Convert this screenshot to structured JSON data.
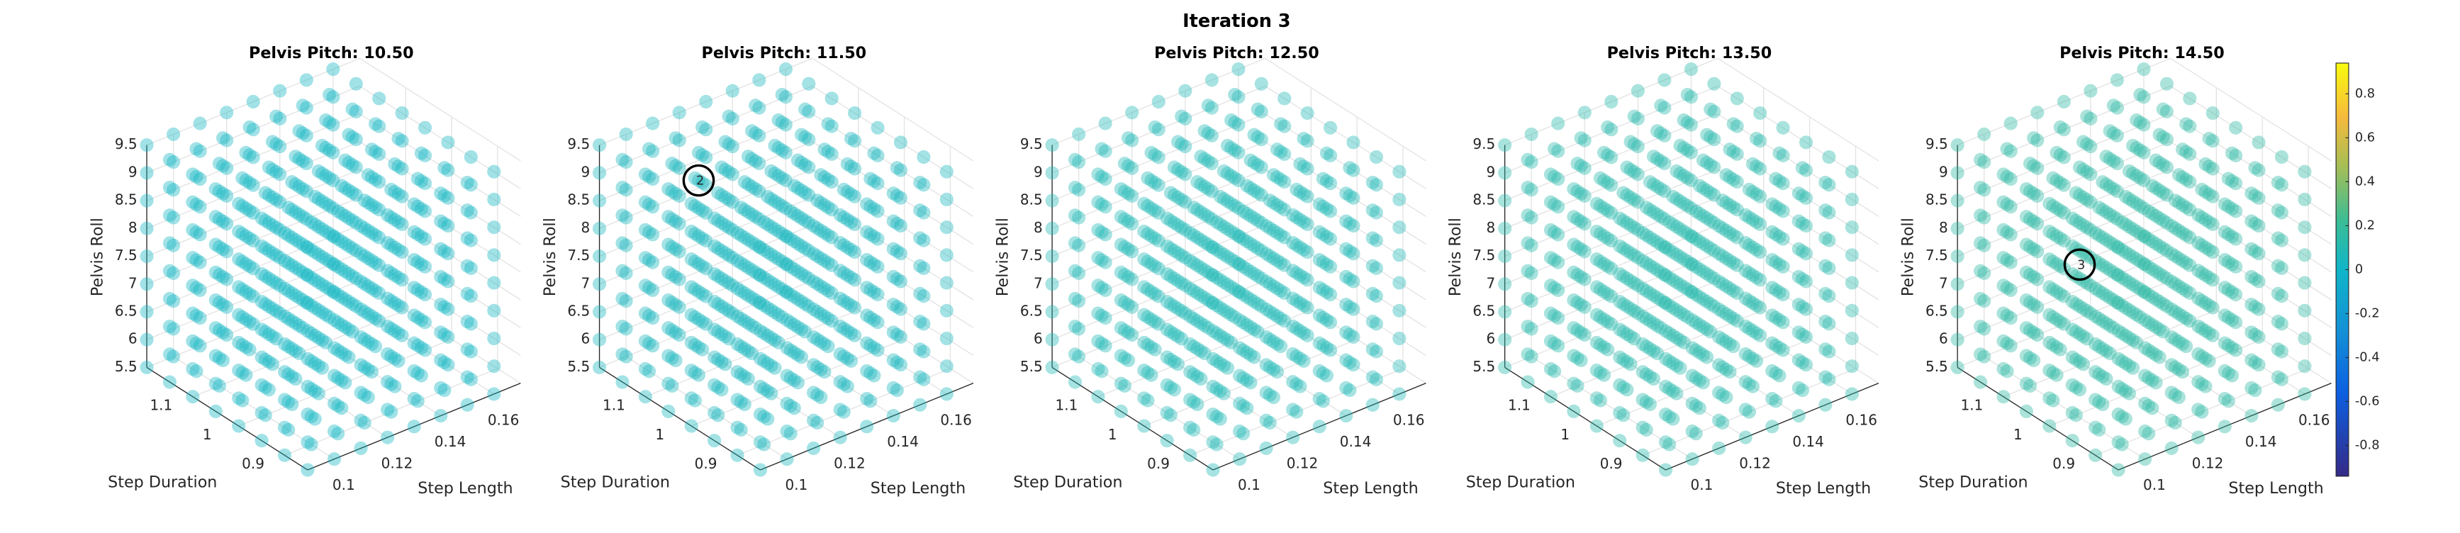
{
  "chart_data": {
    "type": "scatter3d",
    "title": "Iteration 3",
    "xlabel": "Step Length",
    "ylabel": "Step Duration",
    "zlabel": "Pelvis Roll",
    "xlim": [
      0.09,
      0.17
    ],
    "xticks": [
      0.1,
      0.12,
      0.14,
      0.16
    ],
    "ylim": [
      0.85,
      1.2
    ],
    "yticks": [
      0.9,
      1,
      1.1
    ],
    "zlim": [
      5.5,
      9.5
    ],
    "zticks": [
      5.5,
      6,
      6.5,
      7,
      7.5,
      8,
      8.5,
      9,
      9.5
    ],
    "grid": true,
    "grid_x": [
      0.09,
      0.1,
      0.11,
      0.12,
      0.13,
      0.14,
      0.15,
      0.16
    ],
    "grid_y": [
      0.85,
      0.9,
      0.95,
      1,
      1.05,
      1.1,
      1.15,
      1.2
    ],
    "grid_z": [
      5.5,
      6,
      6.5,
      7,
      7.5,
      8,
      8.5,
      9,
      9.5
    ],
    "subplots": [
      {
        "title": "Pelvis Pitch: 10.50",
        "value": 0.02,
        "annotation": null
      },
      {
        "title": "Pelvis Pitch: 11.50",
        "value": 0.05,
        "annotation": {
          "label": 2,
          "x": 0.11,
          "y": 1.1,
          "z": 9.0
        }
      },
      {
        "title": "Pelvis Pitch: 12.50",
        "value": 0.08,
        "annotation": null
      },
      {
        "title": "Pelvis Pitch: 13.50",
        "value": 0.12,
        "annotation": null
      },
      {
        "title": "Pelvis Pitch: 14.50",
        "value": 0.15,
        "annotation": {
          "label": 3,
          "x": 0.11,
          "y": 1.05,
          "z": 7.75
        }
      }
    ],
    "colorbar": {
      "clim": [
        -0.94,
        0.94
      ],
      "ticks": [
        0.8,
        0.6,
        0.4,
        0.2,
        0,
        -0.2,
        -0.4,
        -0.6,
        -0.8
      ],
      "colormap": "parula"
    }
  }
}
